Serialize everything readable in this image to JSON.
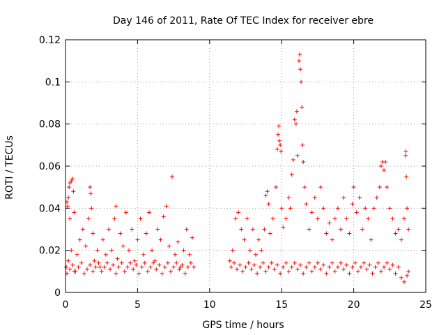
{
  "chart_data": {
    "type": "scatter",
    "title": "Day 146 of 2011, Rate Of TEC Index for receiver ebre",
    "xlabel": "GPS time / hours",
    "ylabel": "ROTI / TECUs",
    "xlim": [
      0,
      25
    ],
    "ylim": [
      0,
      0.12
    ],
    "xticks": [
      0,
      5,
      10,
      15,
      20,
      25
    ],
    "xtick_labels": [
      "0",
      "5",
      "10",
      "15",
      "20",
      "25"
    ],
    "yticks": [
      0,
      0.02,
      0.04,
      0.06,
      0.08,
      0.1,
      0.12
    ],
    "ytick_labels": [
      "0",
      "0.02",
      "0.04",
      "0.06",
      "0.08",
      "0.1",
      "0.12"
    ],
    "grid": true,
    "marker": "+",
    "color": "#ff0000",
    "series": [
      {
        "name": "ROTI",
        "points": [
          [
            0.05,
            0.012
          ],
          [
            0.1,
            0.043
          ],
          [
            0.15,
            0.041
          ],
          [
            0.2,
            0.045
          ],
          [
            0.25,
            0.05
          ],
          [
            0.3,
            0.052
          ],
          [
            0.4,
            0.053
          ],
          [
            0.5,
            0.054
          ],
          [
            0.55,
            0.048
          ],
          [
            0.3,
            0.035
          ],
          [
            0.6,
            0.038
          ],
          [
            0.2,
            0.015
          ],
          [
            0.4,
            0.02
          ],
          [
            0.6,
            0.01
          ],
          [
            0.8,
            0.018
          ],
          [
            1.0,
            0.025
          ],
          [
            1.2,
            0.03
          ],
          [
            1.4,
            0.022
          ],
          [
            1.6,
            0.035
          ],
          [
            1.7,
            0.05
          ],
          [
            1.75,
            0.047
          ],
          [
            1.8,
            0.04
          ],
          [
            1.9,
            0.028
          ],
          [
            2.0,
            0.015
          ],
          [
            2.2,
            0.02
          ],
          [
            2.4,
            0.012
          ],
          [
            2.6,
            0.025
          ],
          [
            2.8,
            0.018
          ],
          [
            3.0,
            0.03
          ],
          [
            3.2,
            0.02
          ],
          [
            3.4,
            0.035
          ],
          [
            3.5,
            0.041
          ],
          [
            3.6,
            0.016
          ],
          [
            3.8,
            0.028
          ],
          [
            4.0,
            0.022
          ],
          [
            4.2,
            0.038
          ],
          [
            4.4,
            0.02
          ],
          [
            4.6,
            0.03
          ],
          [
            4.8,
            0.015
          ],
          [
            5.0,
            0.025
          ],
          [
            5.2,
            0.035
          ],
          [
            5.4,
            0.018
          ],
          [
            5.6,
            0.028
          ],
          [
            5.8,
            0.038
          ],
          [
            6.0,
            0.02
          ],
          [
            6.2,
            0.015
          ],
          [
            6.4,
            0.03
          ],
          [
            6.6,
            0.025
          ],
          [
            6.8,
            0.036
          ],
          [
            7.0,
            0.041
          ],
          [
            7.2,
            0.022
          ],
          [
            7.4,
            0.055
          ],
          [
            7.6,
            0.018
          ],
          [
            7.8,
            0.024
          ],
          [
            8.0,
            0.012
          ],
          [
            8.2,
            0.02
          ],
          [
            8.4,
            0.03
          ],
          [
            8.6,
            0.018
          ],
          [
            8.8,
            0.026
          ],
          [
            0.1,
            0.009
          ],
          [
            0.3,
            0.011
          ],
          [
            0.5,
            0.013
          ],
          [
            0.7,
            0.01
          ],
          [
            0.9,
            0.012
          ],
          [
            1.1,
            0.014
          ],
          [
            1.3,
            0.009
          ],
          [
            1.5,
            0.011
          ],
          [
            1.7,
            0.013
          ],
          [
            1.9,
            0.01
          ],
          [
            2.1,
            0.012
          ],
          [
            2.3,
            0.014
          ],
          [
            2.5,
            0.01
          ],
          [
            2.7,
            0.012
          ],
          [
            2.9,
            0.014
          ],
          [
            3.1,
            0.011
          ],
          [
            3.3,
            0.013
          ],
          [
            3.5,
            0.009
          ],
          [
            3.7,
            0.012
          ],
          [
            3.9,
            0.014
          ],
          [
            4.1,
            0.01
          ],
          [
            4.3,
            0.012
          ],
          [
            4.5,
            0.014
          ],
          [
            4.7,
            0.011
          ],
          [
            4.9,
            0.013
          ],
          [
            5.1,
            0.009
          ],
          [
            5.3,
            0.012
          ],
          [
            5.5,
            0.014
          ],
          [
            5.7,
            0.01
          ],
          [
            5.9,
            0.012
          ],
          [
            6.1,
            0.014
          ],
          [
            6.3,
            0.011
          ],
          [
            6.5,
            0.013
          ],
          [
            6.7,
            0.009
          ],
          [
            6.9,
            0.012
          ],
          [
            7.1,
            0.014
          ],
          [
            7.3,
            0.01
          ],
          [
            7.5,
            0.012
          ],
          [
            7.7,
            0.014
          ],
          [
            7.9,
            0.011
          ],
          [
            8.1,
            0.013
          ],
          [
            8.3,
            0.009
          ],
          [
            8.5,
            0.012
          ],
          [
            8.7,
            0.014
          ],
          [
            8.9,
            0.012
          ],
          [
            11.4,
            0.015
          ],
          [
            11.6,
            0.02
          ],
          [
            11.8,
            0.035
          ],
          [
            12.0,
            0.038
          ],
          [
            12.2,
            0.03
          ],
          [
            12.4,
            0.025
          ],
          [
            12.6,
            0.035
          ],
          [
            12.8,
            0.02
          ],
          [
            13.0,
            0.03
          ],
          [
            13.2,
            0.018
          ],
          [
            13.4,
            0.025
          ],
          [
            13.6,
            0.02
          ],
          [
            13.8,
            0.03
          ],
          [
            13.9,
            0.046
          ],
          [
            14.0,
            0.048
          ],
          [
            14.1,
            0.042
          ],
          [
            14.2,
            0.028
          ],
          [
            14.4,
            0.035
          ],
          [
            14.6,
            0.05
          ],
          [
            14.7,
            0.068
          ],
          [
            14.75,
            0.075
          ],
          [
            14.8,
            0.079
          ],
          [
            14.85,
            0.072
          ],
          [
            14.9,
            0.07
          ],
          [
            14.95,
            0.067
          ],
          [
            15.0,
            0.04
          ],
          [
            15.1,
            0.031
          ],
          [
            15.3,
            0.035
          ],
          [
            15.5,
            0.045
          ],
          [
            15.6,
            0.04
          ],
          [
            15.7,
            0.056
          ],
          [
            15.8,
            0.063
          ],
          [
            15.9,
            0.082
          ],
          [
            16.0,
            0.08
          ],
          [
            16.05,
            0.086
          ],
          [
            16.1,
            0.065
          ],
          [
            16.2,
            0.11
          ],
          [
            16.25,
            0.113
          ],
          [
            16.3,
            0.106
          ],
          [
            16.35,
            0.1
          ],
          [
            16.4,
            0.088
          ],
          [
            16.45,
            0.07
          ],
          [
            16.5,
            0.062
          ],
          [
            16.6,
            0.05
          ],
          [
            16.7,
            0.042
          ],
          [
            16.9,
            0.03
          ],
          [
            17.1,
            0.038
          ],
          [
            17.3,
            0.045
          ],
          [
            17.5,
            0.035
          ],
          [
            17.7,
            0.05
          ],
          [
            17.9,
            0.04
          ],
          [
            18.1,
            0.028
          ],
          [
            18.3,
            0.033
          ],
          [
            18.5,
            0.025
          ],
          [
            18.7,
            0.035
          ],
          [
            18.9,
            0.04
          ],
          [
            19.1,
            0.03
          ],
          [
            19.3,
            0.045
          ],
          [
            19.5,
            0.035
          ],
          [
            19.7,
            0.028
          ],
          [
            19.9,
            0.042
          ],
          [
            20.0,
            0.05
          ],
          [
            20.2,
            0.038
          ],
          [
            20.4,
            0.045
          ],
          [
            20.6,
            0.03
          ],
          [
            20.8,
            0.04
          ],
          [
            21.0,
            0.035
          ],
          [
            21.2,
            0.025
          ],
          [
            21.4,
            0.04
          ],
          [
            21.6,
            0.045
          ],
          [
            21.8,
            0.05
          ],
          [
            21.9,
            0.06
          ],
          [
            22.0,
            0.062
          ],
          [
            22.1,
            0.058
          ],
          [
            22.2,
            0.062
          ],
          [
            22.3,
            0.05
          ],
          [
            22.5,
            0.04
          ],
          [
            22.7,
            0.035
          ],
          [
            22.9,
            0.028
          ],
          [
            23.1,
            0.03
          ],
          [
            23.3,
            0.025
          ],
          [
            23.5,
            0.035
          ],
          [
            23.6,
            0.065
          ],
          [
            23.62,
            0.067
          ],
          [
            23.65,
            0.055
          ],
          [
            23.7,
            0.04
          ],
          [
            23.8,
            0.03
          ],
          [
            11.5,
            0.012
          ],
          [
            11.7,
            0.014
          ],
          [
            11.9,
            0.011
          ],
          [
            12.1,
            0.013
          ],
          [
            12.3,
            0.01
          ],
          [
            12.5,
            0.012
          ],
          [
            12.7,
            0.014
          ],
          [
            12.9,
            0.011
          ],
          [
            13.1,
            0.013
          ],
          [
            13.3,
            0.009
          ],
          [
            13.5,
            0.012
          ],
          [
            13.7,
            0.014
          ],
          [
            13.9,
            0.01
          ],
          [
            14.1,
            0.012
          ],
          [
            14.3,
            0.014
          ],
          [
            14.5,
            0.011
          ],
          [
            14.7,
            0.013
          ],
          [
            14.9,
            0.009
          ],
          [
            15.1,
            0.012
          ],
          [
            15.3,
            0.014
          ],
          [
            15.5,
            0.01
          ],
          [
            15.7,
            0.012
          ],
          [
            15.9,
            0.014
          ],
          [
            16.1,
            0.011
          ],
          [
            16.3,
            0.013
          ],
          [
            16.5,
            0.009
          ],
          [
            16.7,
            0.012
          ],
          [
            16.9,
            0.014
          ],
          [
            17.1,
            0.01
          ],
          [
            17.3,
            0.012
          ],
          [
            17.5,
            0.014
          ],
          [
            17.7,
            0.011
          ],
          [
            17.9,
            0.013
          ],
          [
            18.1,
            0.009
          ],
          [
            18.3,
            0.012
          ],
          [
            18.5,
            0.014
          ],
          [
            18.7,
            0.01
          ],
          [
            18.9,
            0.012
          ],
          [
            19.1,
            0.014
          ],
          [
            19.3,
            0.011
          ],
          [
            19.5,
            0.013
          ],
          [
            19.7,
            0.009
          ],
          [
            19.9,
            0.012
          ],
          [
            20.1,
            0.014
          ],
          [
            20.3,
            0.01
          ],
          [
            20.5,
            0.012
          ],
          [
            20.7,
            0.014
          ],
          [
            20.9,
            0.011
          ],
          [
            21.1,
            0.013
          ],
          [
            21.3,
            0.009
          ],
          [
            21.5,
            0.012
          ],
          [
            21.7,
            0.014
          ],
          [
            21.9,
            0.01
          ],
          [
            22.1,
            0.012
          ],
          [
            22.3,
            0.014
          ],
          [
            22.5,
            0.011
          ],
          [
            22.7,
            0.013
          ],
          [
            22.9,
            0.009
          ],
          [
            23.1,
            0.012
          ],
          [
            23.3,
            0.007
          ],
          [
            23.5,
            0.005
          ],
          [
            23.7,
            0.008
          ],
          [
            23.8,
            0.01
          ]
        ]
      }
    ]
  }
}
